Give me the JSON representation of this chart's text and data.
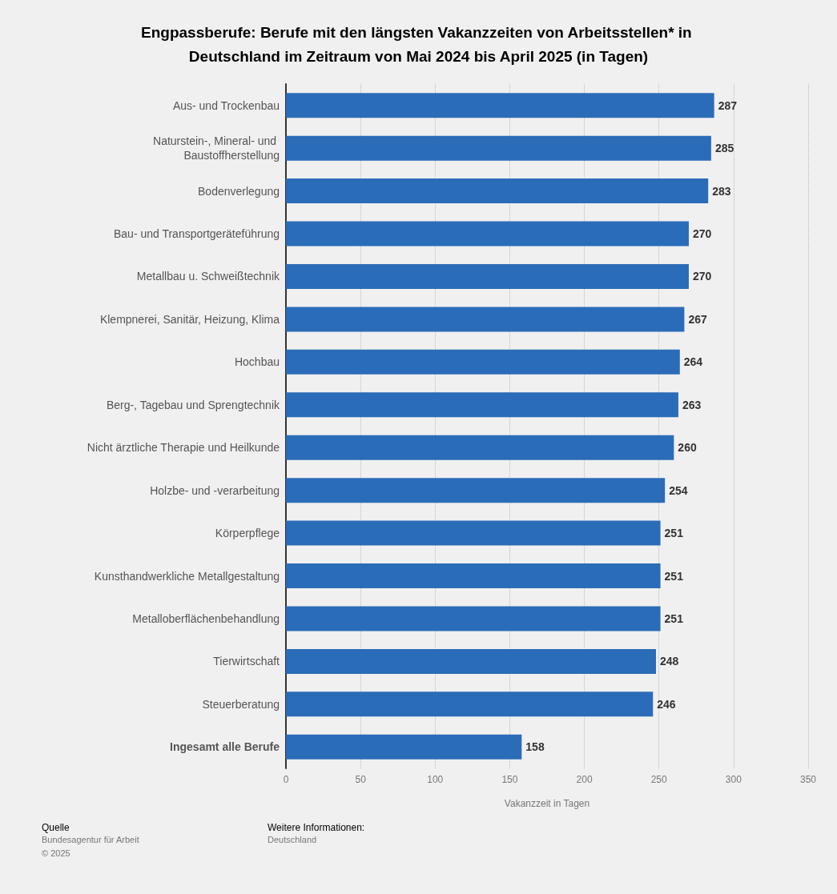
{
  "chart_data": {
    "type": "bar",
    "orientation": "horizontal",
    "title": "Engpassberufe: Berufe mit den längsten Vakanzzeiten von Arbeitsstellen* in Deutschland im Zeitraum von Mai 2024 bis April 2025 (in Tagen)",
    "categories": [
      "Aus- und Trockenbau",
      "Naturstein-, Mineral- und Baustoffherstellung",
      "Bodenverlegung",
      "Bau- und Transportgeräteführung",
      "Metallbau u. Schweißtechnik",
      "Klempnerei, Sanitär, Heizung, Klima",
      "Hochbau",
      "Berg-, Tagebau und Sprengtechnik",
      "Nicht ärztliche Therapie und Heilkunde",
      "Holzbe- und -verarbeitung",
      "Körperpflege",
      "Kunsthandwerkliche Metallgestaltung",
      "Metalloberflächenbehandlung",
      "Tierwirtschaft",
      "Steuerberatung",
      "Ingesamt alle Berufe"
    ],
    "values": [
      287,
      285,
      283,
      270,
      270,
      267,
      264,
      263,
      260,
      254,
      251,
      251,
      251,
      248,
      246,
      158
    ],
    "color": "#2b6cb8",
    "data_labels": true,
    "xlabel": "Vakanzzeit in Tagen",
    "xlim": [
      0,
      350
    ],
    "xticks": [
      0,
      50,
      100,
      150,
      200,
      250,
      300,
      350
    ],
    "grid": "x",
    "annotations": [
      "Quelle",
      "Bundesagentur für Arbeit",
      "© 2025",
      "Weitere Informationen:",
      "Deutschland"
    ]
  }
}
